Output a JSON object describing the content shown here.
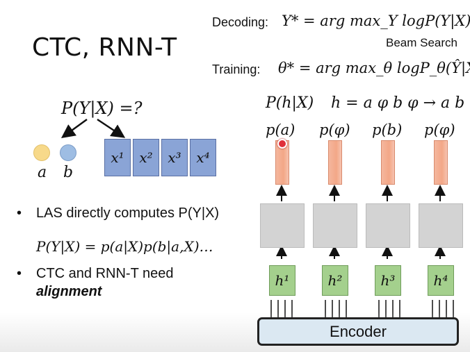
{
  "slide": {
    "title": "CTC, RNN-T",
    "decoding_label": "Decoding:",
    "decoding_formula": "Y* = arg max_Y logP(Y|X)",
    "beam_search": "Beam Search",
    "training_label": "Training:",
    "training_formula": "θ* = arg max_θ logP_θ(Ŷ|X)",
    "question": "P(Y|X) =?",
    "token_a": "a",
    "token_b": "b",
    "inputs": [
      "x¹",
      "x²",
      "x³",
      "x⁴"
    ],
    "bullet1": "LAS directly computes P(Y|X)",
    "las_formula": "P(Y|X) = p(a|X)p(b|a,X)…",
    "bullet2_line1": "CTC and RNN-T need",
    "bullet2_line2": "alignment",
    "alignment_lhs": "P(h|X)",
    "alignment_rhs": "h = a φ b φ → a b",
    "outputs": [
      "p(a)",
      "p(φ)",
      "p(b)",
      "p(φ)"
    ],
    "hidden": [
      "h¹",
      "h²",
      "h³",
      "h⁴"
    ],
    "encoder": "Encoder"
  },
  "colors": {
    "dot_a": "#f7d98a",
    "dot_b": "#9ebde3",
    "input_box": "#8aa4d6",
    "output_bar": "#f3a787",
    "hidden_box": "#a4d08d",
    "encoder_fill": "#dbe8f2"
  }
}
